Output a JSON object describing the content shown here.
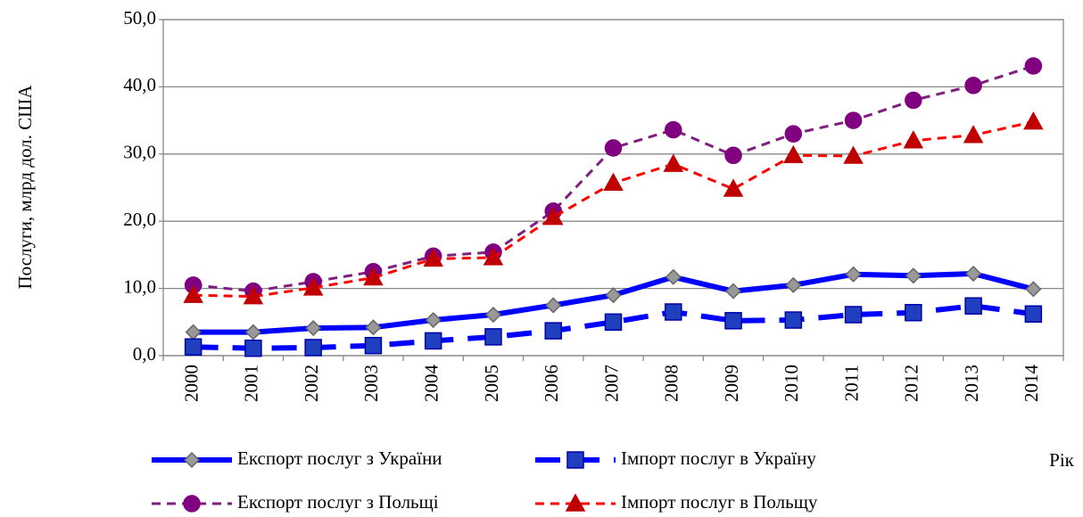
{
  "chart_data": {
    "type": "line",
    "y_label": "Послуги, млрд дол. США",
    "x_label": "Рік",
    "categories": [
      "2000",
      "2001",
      "2002",
      "2003",
      "2004",
      "2005",
      "2006",
      "2007",
      "2008",
      "2009",
      "2010",
      "2011",
      "2012",
      "2013",
      "2014"
    ],
    "series": [
      {
        "name": "Експорт послуг з України",
        "color": "#0000ff",
        "marker": "diamond",
        "marker_color": "#999999",
        "dash": "solid",
        "values": [
          3.5,
          3.5,
          4.1,
          4.2,
          5.3,
          6.1,
          7.5,
          9.0,
          11.7,
          9.6,
          10.5,
          12.1,
          11.9,
          12.2,
          9.9
        ]
      },
      {
        "name": "Імпорт послуг в Україну",
        "color": "#0000ff",
        "marker": "square",
        "marker_color": "#1f3fbf",
        "dash": "long",
        "values": [
          1.3,
          1.1,
          1.2,
          1.5,
          2.2,
          2.8,
          3.7,
          5.0,
          6.5,
          5.2,
          5.3,
          6.1,
          6.4,
          7.4,
          6.2
        ]
      },
      {
        "name": "Експорт послуг з Польщі",
        "color": "#7f1f7f",
        "marker": "circle",
        "marker_color": "#800080",
        "dash": "short",
        "values": [
          10.5,
          9.6,
          11.0,
          12.5,
          14.8,
          15.4,
          21.5,
          30.9,
          33.6,
          29.8,
          33.0,
          35.0,
          38.0,
          40.2,
          43.1
        ]
      },
      {
        "name": "Імпорт послуг в Польщу",
        "color": "#ff0000",
        "marker": "triangle",
        "marker_color": "#c00000",
        "dash": "short",
        "values": [
          9.0,
          8.8,
          10.1,
          11.6,
          14.4,
          14.6,
          20.6,
          25.7,
          28.5,
          24.8,
          29.8,
          29.7,
          32.0,
          32.8,
          34.8
        ]
      }
    ],
    "ylim": [
      0,
      50
    ],
    "yticks": [
      {
        "value": 0,
        "label": "0,0"
      },
      {
        "value": 10,
        "label": "10,0"
      },
      {
        "value": 20,
        "label": "20,0"
      },
      {
        "value": 30,
        "label": "30,0"
      },
      {
        "value": 40,
        "label": "40,0"
      },
      {
        "value": 50,
        "label": "50,0"
      }
    ],
    "grid": true,
    "legend": "bottom"
  }
}
